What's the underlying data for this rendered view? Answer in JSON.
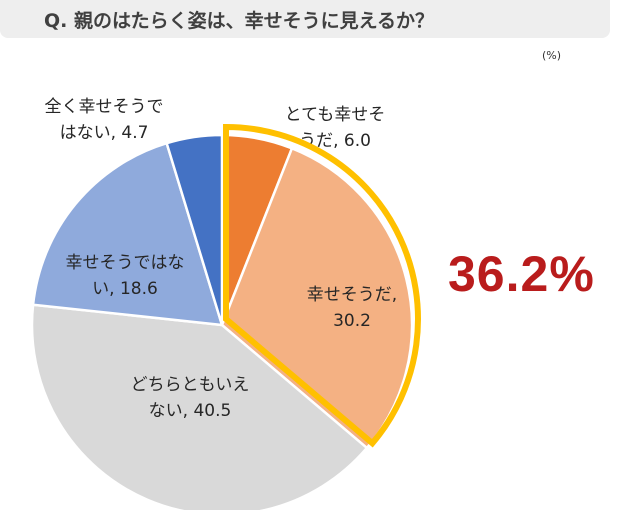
{
  "question": "Q.  親のはたらく姿は、幸せそうに見えるか？",
  "unit": "(%)",
  "highlight": "36.2%",
  "chart_data": {
    "type": "pie",
    "title": "Q.  親のはたらく姿は、幸せそうに見えるか？",
    "unit": "%",
    "slices": [
      {
        "name": "とても幸せそうだ",
        "value": 6.0,
        "color": "#ED7D31",
        "label_lines": [
          "とても幸せそ",
          "うだ, 6.0"
        ]
      },
      {
        "name": "幸せそうだ",
        "value": 30.2,
        "color": "#F4B183",
        "label_lines": [
          "幸せそうだ,",
          "30.2"
        ]
      },
      {
        "name": "どちらともいえない",
        "value": 40.5,
        "color": "#D9D9D9",
        "label_lines": [
          "どちらともいえ",
          "ない, 40.5"
        ]
      },
      {
        "name": "幸せそうではない",
        "value": 18.6,
        "color": "#8FAADC",
        "label_lines": [
          "幸せそうではな",
          "い, 18.6"
        ]
      },
      {
        "name": "全く幸せそうではない",
        "value": 4.7,
        "color": "#4472C4",
        "label_lines": [
          "全く幸せそうで",
          "はない, 4.7"
        ]
      }
    ],
    "highlighted_slices": [
      "とても幸せそうだ",
      "幸せそうだ"
    ],
    "highlight_color": "#FFC000",
    "highlight_total": "36.2%"
  }
}
